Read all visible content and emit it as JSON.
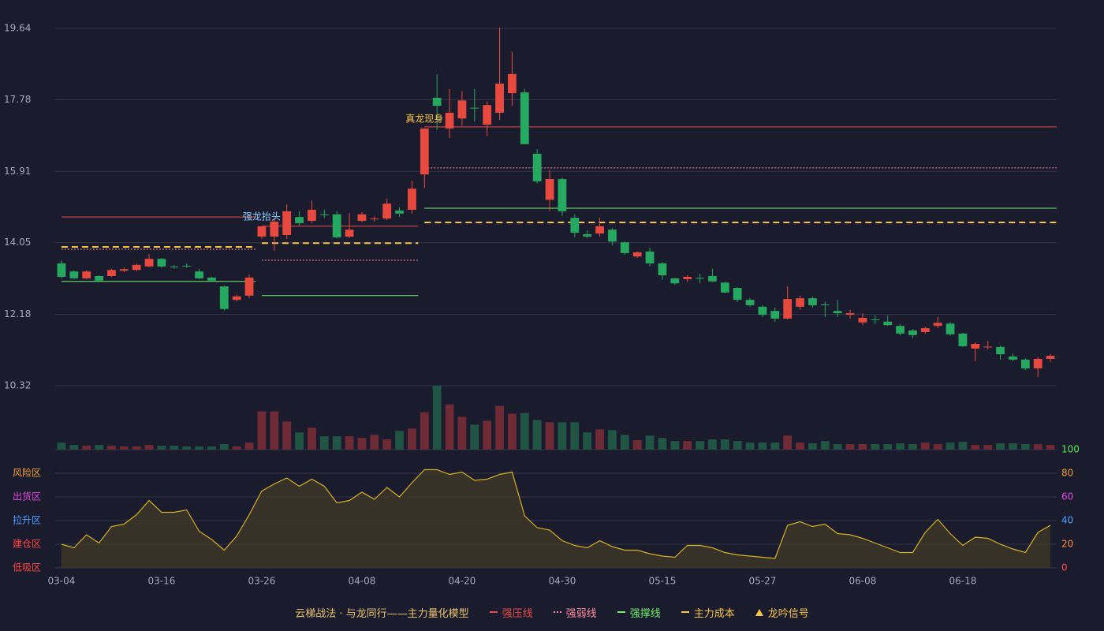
{
  "chart_data": {
    "type": "candlestick",
    "categories": [
      "03-04",
      null,
      null,
      null,
      null,
      null,
      null,
      null,
      "03-16",
      null,
      null,
      null,
      null,
      null,
      null,
      null,
      "03-26",
      null,
      null,
      null,
      null,
      null,
      null,
      null,
      "04-08",
      null,
      null,
      null,
      null,
      null,
      null,
      null,
      "04-20",
      null,
      null,
      null,
      null,
      null,
      null,
      null,
      "04-30",
      null,
      null,
      null,
      null,
      null,
      null,
      null,
      "05-15",
      null,
      null,
      null,
      null,
      null,
      null,
      null,
      "05-27",
      null,
      null,
      null,
      null,
      null,
      null,
      null,
      "06-08",
      null,
      null,
      null,
      null,
      null,
      null,
      null,
      "06-18",
      null,
      null,
      null,
      null,
      null,
      null,
      null
    ],
    "open": [
      13.51,
      13.3,
      13.12,
      13.18,
      13.18,
      13.32,
      13.34,
      13.43,
      13.63,
      13.43,
      13.45,
      13.3,
      13.14,
      12.91,
      12.56,
      12.67,
      14.21,
      14.21,
      14.25,
      14.72,
      14.62,
      14.79,
      14.79,
      14.21,
      14.62,
      14.66,
      14.68,
      14.89,
      14.91,
      15.83,
      17.83,
      17.03,
      17.29,
      17.57,
      17.13,
      17.44,
      17.95,
      17.97,
      16.37,
      15.17,
      15.71,
      14.7,
      14.27,
      14.29,
      14.39,
      14.06,
      13.69,
      13.82,
      13.51,
      13.12,
      13.1,
      13.13,
      13.18,
      13.01,
      12.87,
      12.56,
      12.38,
      12.27,
      12.07,
      12.38,
      12.6,
      12.44,
      12.27,
      12.17,
      11.97,
      12.05,
      11.99,
      11.88,
      11.76,
      11.72,
      11.88,
      11.94,
      11.68,
      11.29,
      11.33,
      11.33,
      11.08,
      11.0,
      10.77,
      11.02
    ],
    "high": [
      13.59,
      13.33,
      13.33,
      13.2,
      13.37,
      13.4,
      13.51,
      13.75,
      13.65,
      13.47,
      13.51,
      13.37,
      13.16,
      12.93,
      12.69,
      13.22,
      14.48,
      14.7,
      15.05,
      14.87,
      15.15,
      14.91,
      14.87,
      14.83,
      14.85,
      14.74,
      15.2,
      14.97,
      15.67,
      17.03,
      18.44,
      18.06,
      18.0,
      18.06,
      17.74,
      19.66,
      19.03,
      18.06,
      16.49,
      15.95,
      15.75,
      14.79,
      14.37,
      14.7,
      14.44,
      14.08,
      13.82,
      13.92,
      13.55,
      13.14,
      13.2,
      13.24,
      13.37,
      13.03,
      12.89,
      12.6,
      12.42,
      12.36,
      12.91,
      12.67,
      12.64,
      12.52,
      12.56,
      12.3,
      12.21,
      12.15,
      12.15,
      11.92,
      11.8,
      11.86,
      12.11,
      11.98,
      11.7,
      11.45,
      11.49,
      11.37,
      11.16,
      11.04,
      11.06,
      11.14
    ],
    "low": [
      13.12,
      13.1,
      13.1,
      13.02,
      13.16,
      13.28,
      13.3,
      13.41,
      13.39,
      13.37,
      13.39,
      13.1,
      13.04,
      12.28,
      12.52,
      12.6,
      14.15,
      13.84,
      14.15,
      14.5,
      14.56,
      14.7,
      14.17,
      14.17,
      14.58,
      14.6,
      14.64,
      14.72,
      14.81,
      15.48,
      16.99,
      16.78,
      17.1,
      17.21,
      16.83,
      17.25,
      17.62,
      16.62,
      15.6,
      14.87,
      14.75,
      14.19,
      14.17,
      14.21,
      13.98,
      13.74,
      13.65,
      13.43,
      13.08,
      12.95,
      13.02,
      12.99,
      13.02,
      12.73,
      12.5,
      12.38,
      12.11,
      11.99,
      12.05,
      12.3,
      12.36,
      12.11,
      12.11,
      12.07,
      11.9,
      11.93,
      11.88,
      11.64,
      11.56,
      11.68,
      11.82,
      11.62,
      11.33,
      10.96,
      11.27,
      11.0,
      10.96,
      10.73,
      10.55,
      10.94
    ],
    "close": [
      13.16,
      13.12,
      13.3,
      13.06,
      13.34,
      13.36,
      13.47,
      13.63,
      13.43,
      13.42,
      13.44,
      13.12,
      13.06,
      12.32,
      12.65,
      13.14,
      14.48,
      14.6,
      14.87,
      14.56,
      14.91,
      14.78,
      14.19,
      14.39,
      14.79,
      14.68,
      15.07,
      14.81,
      15.46,
      17.03,
      17.62,
      17.44,
      17.76,
      17.56,
      17.64,
      18.2,
      18.45,
      16.62,
      15.65,
      15.71,
      14.87,
      14.31,
      14.21,
      14.48,
      14.08,
      13.78,
      13.8,
      13.51,
      13.2,
      12.99,
      13.16,
      13.12,
      13.04,
      12.75,
      12.56,
      12.42,
      12.17,
      12.07,
      12.58,
      12.6,
      12.42,
      12.43,
      12.21,
      12.21,
      12.09,
      12.04,
      11.9,
      11.68,
      11.64,
      11.82,
      11.96,
      11.66,
      11.35,
      11.41,
      11.34,
      11.14,
      11.0,
      10.77,
      11.02,
      11.1
    ],
    "up_color": "#e8493f",
    "down_color": "#25a85f",
    "ylim": [
      10.32,
      19.64
    ],
    "yticks": [
      19.64,
      17.78,
      15.91,
      14.05,
      12.18,
      10.32
    ],
    "grid": true,
    "volume": {
      "values": [
        9,
        6,
        5,
        6,
        5,
        4,
        4,
        6,
        5,
        5,
        4,
        4,
        4,
        7,
        4,
        9,
        49,
        49,
        36,
        22,
        28,
        17,
        17,
        17,
        15,
        19,
        13,
        24,
        27,
        48,
        82,
        58,
        42,
        32,
        37,
        56,
        46,
        47,
        38,
        35,
        35,
        35,
        22,
        26,
        25,
        19,
        12,
        18,
        15,
        11,
        11,
        11,
        13,
        13,
        11,
        9,
        9,
        9,
        18,
        9,
        8,
        11,
        7,
        7,
        7,
        7,
        7,
        8,
        7,
        9,
        7,
        9,
        10,
        6,
        6,
        8,
        8,
        7,
        7,
        6
      ],
      "up_color": "#6e2b36",
      "down_color": "#1f5542"
    },
    "levels": [
      {
        "name": "强压线",
        "color": "#e84a4a",
        "style": "solid",
        "segments": [
          {
            "from": 0,
            "to": 15,
            "value": 14.72
          },
          {
            "from": 16,
            "to": 28,
            "value": 14.48
          },
          {
            "from": 29,
            "to": 79,
            "value": 17.07
          }
        ]
      },
      {
        "name": "强弱线",
        "color": "#ff8a9a",
        "style": "dotted",
        "segments": [
          {
            "from": 0,
            "to": 15,
            "value": 13.88
          },
          {
            "from": 16,
            "to": 28,
            "value": 13.59
          },
          {
            "from": 29,
            "to": 79,
            "value": 16.0
          }
        ]
      },
      {
        "name": "强撑线",
        "color": "#6cf06c",
        "style": "solid",
        "segments": [
          {
            "from": 0,
            "to": 15,
            "value": 13.04
          },
          {
            "from": 16,
            "to": 28,
            "value": 12.67
          },
          {
            "from": 29,
            "to": 79,
            "value": 14.95
          }
        ]
      },
      {
        "name": "主力成本",
        "color": "#f5c542",
        "style": "dashed",
        "segments": [
          {
            "from": 0,
            "to": 15,
            "value": 13.94
          },
          {
            "from": 16,
            "to": 28,
            "value": 14.04
          },
          {
            "from": 29,
            "to": 79,
            "value": 14.58
          }
        ]
      }
    ],
    "signal": {
      "name": "龙吟信号",
      "color": "#f5c542"
    },
    "annotations": [
      {
        "text": "强龙抬头",
        "index": 16,
        "color": "#8fd0ff"
      },
      {
        "text": "真龙现身",
        "index": 29,
        "color": "#f5c542"
      }
    ],
    "legend_title": "云梯战法 · 与龙同行——主力量化模型",
    "indicator": {
      "values": [
        20,
        17,
        28,
        21,
        35,
        37,
        45,
        57,
        47,
        47,
        49,
        31,
        24,
        15,
        27,
        45,
        65,
        71,
        76,
        69,
        75,
        69,
        55,
        57,
        64,
        58,
        68,
        60,
        72,
        83,
        83,
        79,
        81,
        74,
        75,
        79,
        81,
        44,
        34,
        32,
        23,
        19,
        17,
        23,
        18,
        15,
        15,
        12,
        10,
        9,
        19,
        19,
        17,
        13,
        11,
        10,
        9,
        8,
        36,
        39,
        35,
        37,
        29,
        28,
        25,
        21,
        17,
        13,
        13,
        30,
        41,
        29,
        19,
        26,
        25,
        20,
        16,
        13,
        30,
        36
      ],
      "color": "#d4b024",
      "fill": "#3a3528",
      "ylim": [
        0,
        100
      ],
      "yticks": [
        0,
        20,
        40,
        60,
        80,
        100
      ],
      "ytick_colors": [
        "#ff4545",
        "#ff8a40",
        "#4aa0ff",
        "#e048e0",
        "#f0a030",
        "#55ee55"
      ],
      "zones": [
        {
          "label": "风险区",
          "value": 80,
          "color": "#f0a030"
        },
        {
          "label": "出货区",
          "value": 60,
          "color": "#e048e0"
        },
        {
          "label": "拉升区",
          "value": 40,
          "color": "#4aa0ff"
        },
        {
          "label": "建仓区",
          "value": 20,
          "color": "#ff4545"
        },
        {
          "label": "低吸区",
          "value": 0,
          "color": "#ff4545"
        }
      ]
    }
  }
}
